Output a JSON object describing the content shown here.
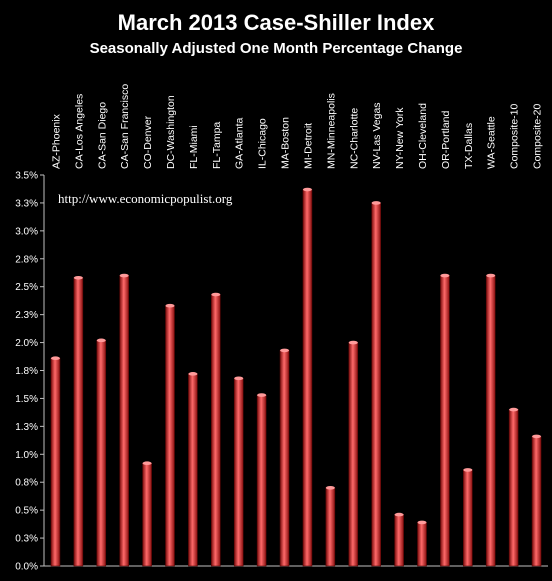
{
  "chart_data": {
    "type": "bar",
    "title": "March 2013 Case-Shiller Index",
    "subtitle": "Seasonally Adjusted One Month Percentage Change",
    "annotation": "http://www.economicpopulist.org",
    "categories": [
      "AZ-Phoenix",
      "CA-Los Angeles",
      "CA-San Diego",
      "CA-San Francisco",
      "CO-Denver",
      "DC-Washington",
      "FL-Miami",
      "FL-Tampa",
      "GA-Atlanta",
      "IL-Chicago",
      "MA-Boston",
      "MI-Detroit",
      "MN-Minneapolis",
      "NC-Charlotte",
      "NV-Las Vegas",
      "NY-New York",
      "OH-Cleveland",
      "OR-Portland",
      "TX-Dallas",
      "WA-Seattle",
      "Composite-10",
      "Composite-20"
    ],
    "values": [
      1.86,
      2.58,
      2.02,
      2.6,
      0.92,
      2.33,
      1.72,
      2.43,
      1.68,
      1.53,
      1.93,
      3.37,
      0.7,
      2.0,
      3.25,
      0.46,
      0.39,
      2.6,
      0.86,
      2.6,
      1.4,
      1.16
    ],
    "ylim": [
      0,
      3.5
    ],
    "yticks": [
      "0.0%",
      "0.3%",
      "0.5%",
      "0.8%",
      "1.0%",
      "1.3%",
      "1.5%",
      "1.8%",
      "2.0%",
      "2.3%",
      "2.5%",
      "2.8%",
      "3.0%",
      "3.3%",
      "3.5%"
    ],
    "xlabel": "",
    "ylabel": "",
    "grid": false,
    "legend": "none",
    "colors": {
      "bar": "#cc1f1f",
      "bar_highlight": "#ff6a6a",
      "background": "#000000",
      "axis": "#bfbfbf"
    }
  }
}
